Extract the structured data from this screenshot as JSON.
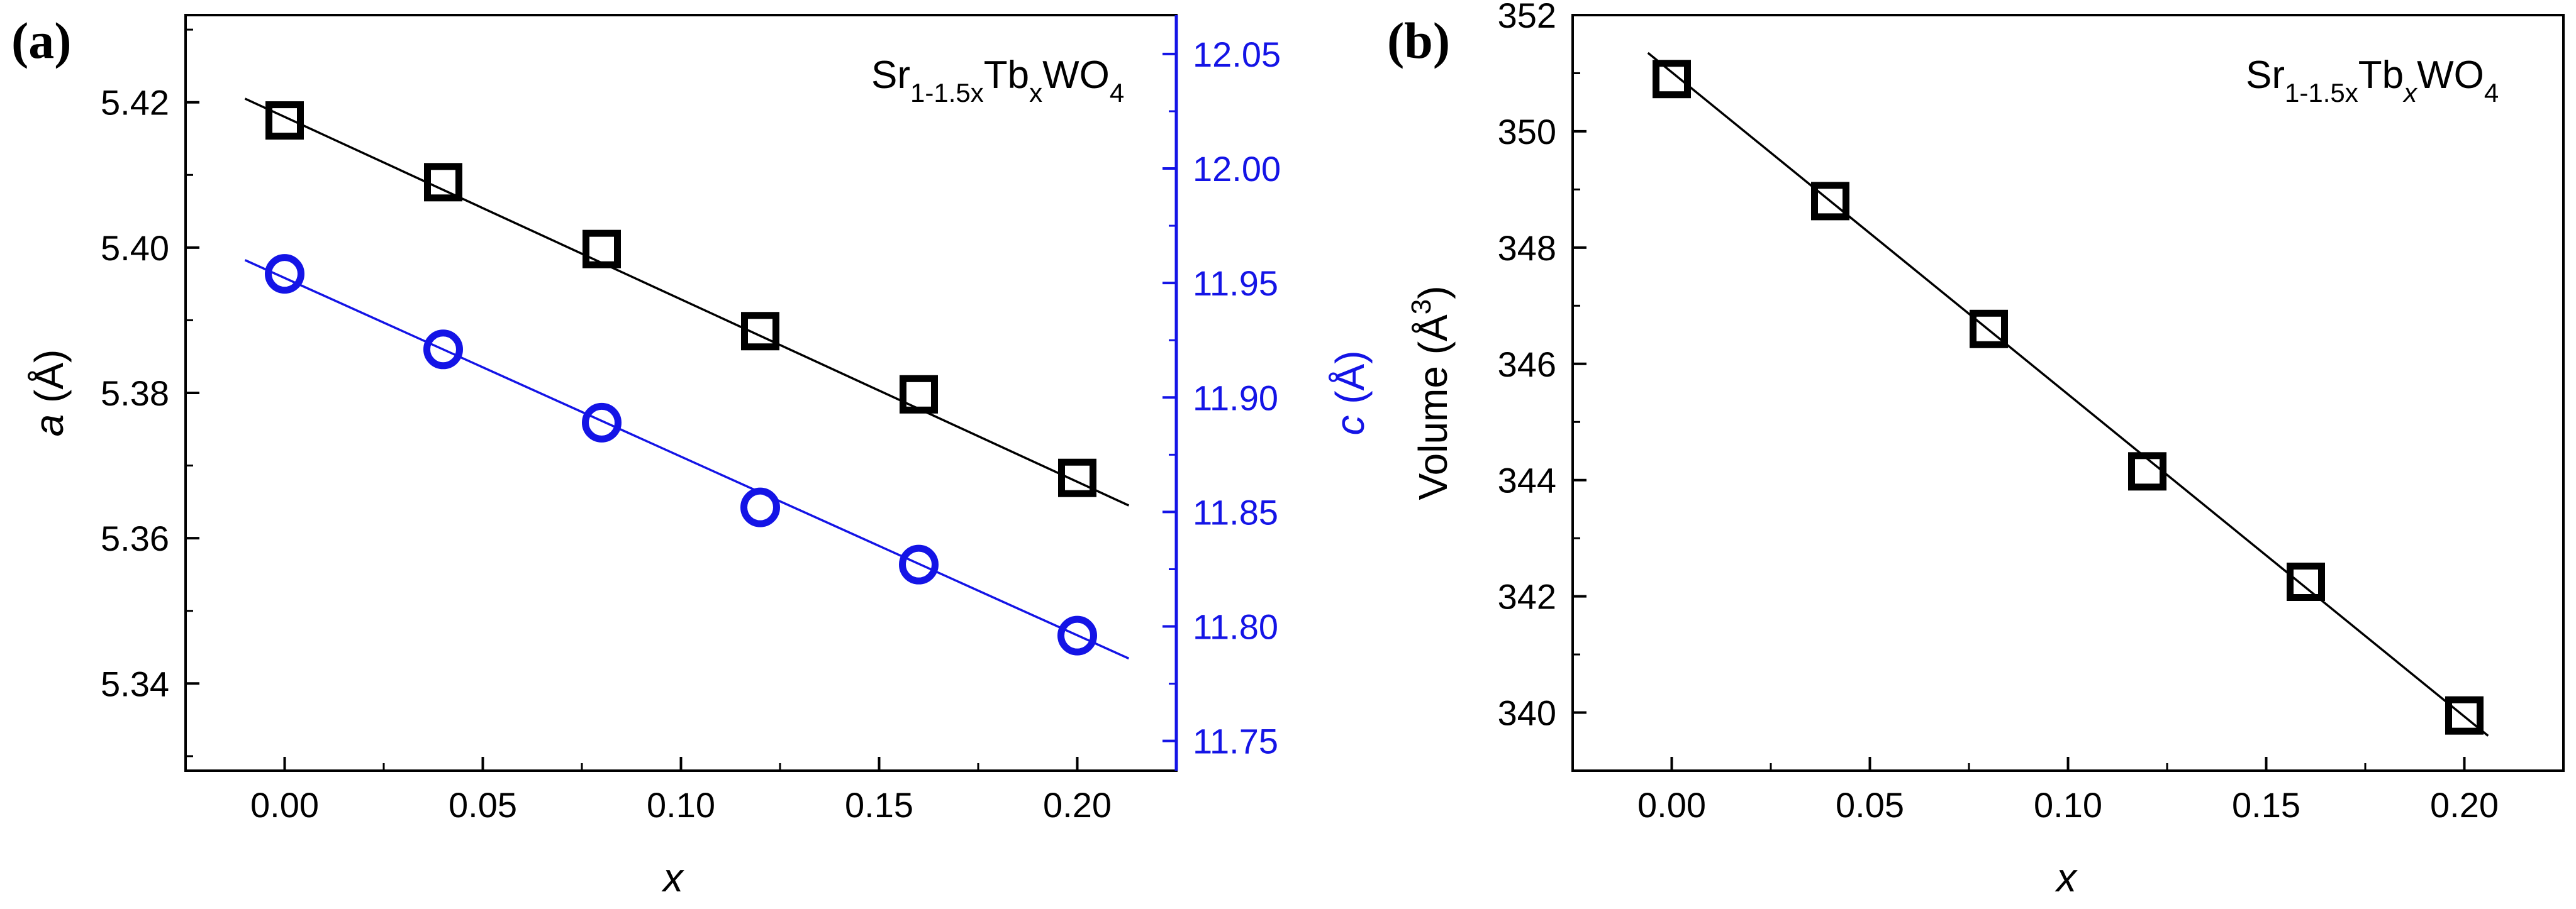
{
  "colors": {
    "black": "#000000",
    "blue": "#1414e6"
  },
  "chart_data": [
    {
      "panel_label": "(a)",
      "type": "scatter",
      "title": "",
      "formula": {
        "base1": "Sr",
        "sub1": "1-1.5x",
        "base2": "Tb",
        "sub2": "x",
        "base3": "WO",
        "sub3": "4"
      },
      "x": [
        0.0,
        0.04,
        0.08,
        0.12,
        0.16,
        0.2
      ],
      "xlabel": "x",
      "xlim": [
        -0.025,
        0.225
      ],
      "xticks": [
        "0.00",
        "0.05",
        "0.10",
        "0.15",
        "0.20"
      ],
      "ylabel_left": {
        "sym": "a",
        "unit": "(Å)"
      },
      "ylim_left": [
        5.328,
        5.432
      ],
      "yticks_left": [
        "5.34",
        "5.36",
        "5.38",
        "5.40",
        "5.42"
      ],
      "ylabel_right": {
        "sym": "c",
        "unit": "(Å)"
      },
      "ylim_right": [
        11.737,
        12.067
      ],
      "yticks_right": [
        "11.75",
        "11.80",
        "11.85",
        "11.90",
        "11.95",
        "12.00",
        "12.05"
      ],
      "series": [
        {
          "name": "a",
          "axis": "left",
          "marker": "square",
          "color": "#000000",
          "values": [
            5.4175,
            5.409,
            5.3998,
            5.3885,
            5.3798,
            5.3683
          ],
          "fit": {
            "x": [
              -0.01,
              0.213
            ],
            "y": [
              5.4205,
              5.3645
            ]
          }
        },
        {
          "name": "c",
          "axis": "right",
          "marker": "circle",
          "color": "#1414e6",
          "values": [
            11.954,
            11.921,
            11.889,
            11.852,
            11.827,
            11.796
          ],
          "fit": {
            "x": [
              -0.01,
              0.213
            ],
            "y": [
              11.96,
              11.786
            ]
          }
        }
      ]
    },
    {
      "panel_label": "(b)",
      "type": "scatter",
      "title": "",
      "formula": {
        "base1": "Sr",
        "sub1": "1-1.5x",
        "base2": "Tb",
        "sub2": "x",
        "base3": "WO",
        "sub3": "4"
      },
      "x": [
        0.0,
        0.04,
        0.08,
        0.12,
        0.16,
        0.2
      ],
      "xlabel": "x",
      "xlim": [
        -0.025,
        0.225
      ],
      "xticks": [
        "0.00",
        "0.05",
        "0.10",
        "0.15",
        "0.20"
      ],
      "ylabel": {
        "text": "Volume (Å",
        "sup": "3",
        "close": ")"
      },
      "ylim": [
        339.0,
        352.0
      ],
      "yticks": [
        "340",
        "342",
        "344",
        "346",
        "348",
        "350",
        "352"
      ],
      "series": [
        {
          "name": "Volume",
          "marker": "square",
          "color": "#000000",
          "values": [
            350.9,
            348.8,
            346.6,
            344.15,
            342.25,
            339.95
          ],
          "fit": {
            "x": [
              -0.006,
              0.206
            ],
            "y": [
              351.35,
              339.6
            ]
          }
        }
      ]
    }
  ]
}
